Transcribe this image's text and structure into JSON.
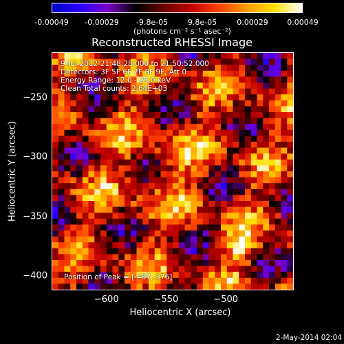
{
  "colorbar": {
    "tick_labels": [
      "-0.00049",
      "-0.00029",
      "-9.8e-05",
      "9.8e-05",
      "0.00029",
      "0.00049"
    ],
    "units": "(photons cm⁻² s⁻¹ asec⁻²)",
    "colors": [
      "#0000c8",
      "#2a00ff",
      "#7a00cc",
      "#000000",
      "#6a0000",
      "#c00000",
      "#ff4000",
      "#ff9a00",
      "#ffe000",
      "#ffffff"
    ]
  },
  "chart_data": {
    "type": "heatmap",
    "title": "Reconstructed RHESSI Image",
    "xlabel": "Heliocentric X (arcsec)",
    "ylabel": "Heliocentric Y (arcsec)",
    "xlim": [
      -646,
      -443
    ],
    "ylim": [
      -412,
      -212
    ],
    "xticks": [
      -600,
      -550,
      -500
    ],
    "yticks": [
      -250,
      -300,
      -350,
      -400
    ],
    "zlim": [
      -0.00049,
      0.00049
    ],
    "peak": [
      -487,
      -376
    ],
    "annotations": [
      "9-Jul-2012 21:48:28.000 to 21:50:52.000",
      "Detectors: 3F 5F 6F 7F 8F 9F, Att 0",
      "Energy Range: 12.0 - 25.0 keV",
      "Clean    Total counts: 2.64E+03"
    ],
    "peak_text": "Position of Peak = [-487,-376]"
  },
  "footer": {
    "date": "2-May-2014 02:04"
  }
}
